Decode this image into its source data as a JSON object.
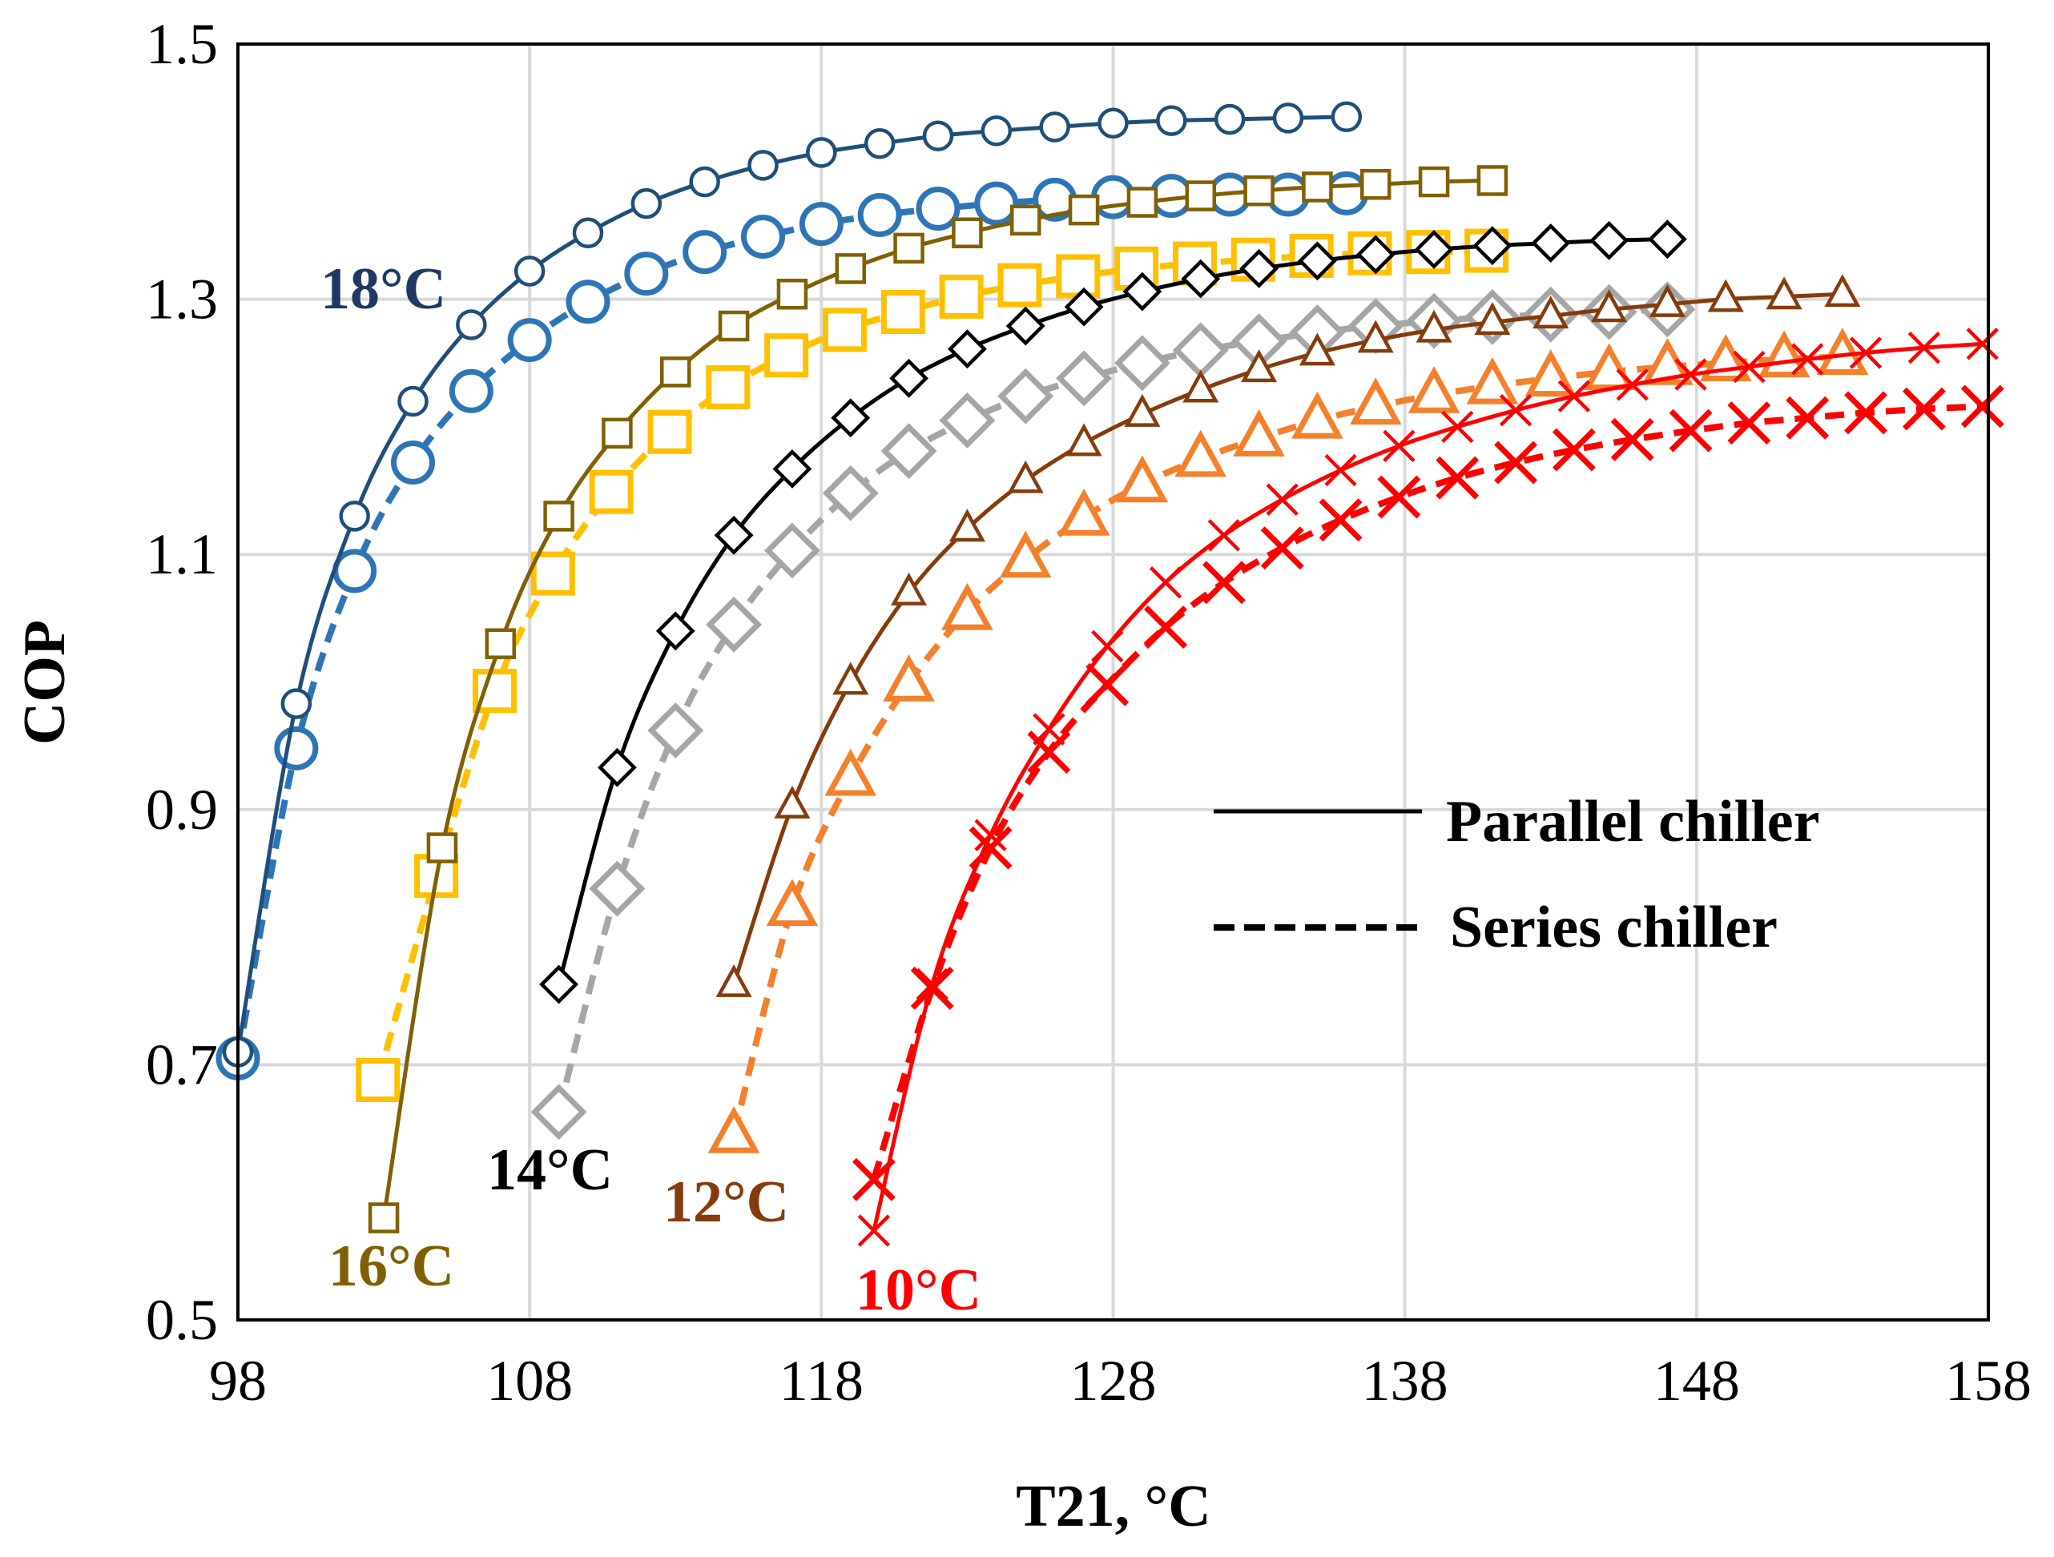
{
  "chart_data": {
    "type": "line",
    "title": "",
    "xlabel": "T21, °C",
    "ylabel": "COP",
    "xlim": [
      98,
      158
    ],
    "ylim": [
      0.5,
      1.5
    ],
    "x_ticks": [
      "98",
      "108",
      "118",
      "128",
      "138",
      "148",
      "158"
    ],
    "y_ticks": [
      "0.5",
      "0.7",
      "0.9",
      "1.1",
      "1.3",
      "1.5"
    ],
    "grid": true,
    "legend": {
      "position": "right",
      "entries": [
        {
          "label": "Parallel chiller",
          "style": "solid"
        },
        {
          "label": "Series chiller",
          "style": "dashed"
        }
      ]
    },
    "groups": [
      {
        "label": "18°C",
        "label_color": "#1f3864",
        "marker": "circle",
        "parallel": {
          "color": "#1f4e79",
          "x": [
            98,
            100,
            102,
            104,
            106,
            108,
            110,
            112,
            114,
            116,
            118,
            120,
            122,
            124,
            126,
            128,
            130,
            132,
            134,
            136
          ],
          "y": [
            0.71,
            0.983,
            1.13,
            1.22,
            1.28,
            1.322,
            1.352,
            1.375,
            1.392,
            1.405,
            1.415,
            1.422,
            1.428,
            1.432,
            1.435,
            1.438,
            1.44,
            1.441,
            1.442,
            1.443
          ]
        },
        "series": {
          "color": "#2e75b6",
          "x": [
            98,
            100,
            102,
            104,
            106,
            108,
            110,
            112,
            114,
            116,
            118,
            120,
            122,
            124,
            126,
            128,
            130,
            132,
            134,
            136
          ],
          "y": [
            0.705,
            0.948,
            1.087,
            1.172,
            1.228,
            1.268,
            1.298,
            1.32,
            1.337,
            1.349,
            1.359,
            1.366,
            1.371,
            1.375,
            1.378,
            1.38,
            1.381,
            1.382,
            1.382,
            1.383
          ]
        }
      },
      {
        "label": "16°C",
        "label_color": "#7f6000",
        "marker": "square",
        "parallel": {
          "color": "#806000",
          "x": [
            103,
            105,
            107,
            109,
            111,
            113,
            115,
            117,
            119,
            121,
            123,
            125,
            127,
            129,
            131,
            133,
            135,
            137,
            139,
            141
          ],
          "y": [
            0.58,
            0.87,
            1.03,
            1.13,
            1.195,
            1.243,
            1.279,
            1.304,
            1.324,
            1.34,
            1.352,
            1.362,
            1.37,
            1.376,
            1.381,
            1.385,
            1.388,
            1.39,
            1.392,
            1.393
          ]
        },
        "series": {
          "color": "#ffc000",
          "x": [
            102.8,
            104.8,
            106.8,
            108.8,
            110.8,
            112.8,
            114.8,
            116.8,
            118.8,
            120.8,
            122.8,
            124.8,
            126.8,
            128.8,
            130.8,
            132.8,
            134.8,
            136.8,
            138.8,
            140.8
          ],
          "y": [
            0.688,
            0.848,
            0.993,
            1.085,
            1.149,
            1.196,
            1.231,
            1.256,
            1.276,
            1.29,
            1.302,
            1.311,
            1.318,
            1.324,
            1.328,
            1.331,
            1.334,
            1.336,
            1.337,
            1.338
          ]
        }
      },
      {
        "label": "14°C",
        "label_color": "#000000",
        "marker": "diamond",
        "parallel": {
          "color": "#000000",
          "x": [
            109,
            111,
            113,
            115,
            117,
            119,
            121,
            123,
            125,
            127,
            129,
            131,
            133,
            135,
            137,
            139,
            141,
            143,
            145,
            147
          ],
          "y": [
            0.763,
            0.933,
            1.04,
            1.115,
            1.167,
            1.207,
            1.238,
            1.261,
            1.279,
            1.294,
            1.306,
            1.316,
            1.324,
            1.33,
            1.335,
            1.339,
            1.342,
            1.344,
            1.346,
            1.347
          ]
        },
        "series": {
          "color": "#a6a6a6",
          "x": [
            109,
            111,
            113,
            115,
            117,
            119,
            121,
            123,
            125,
            127,
            129,
            131,
            133,
            135,
            137,
            139,
            141,
            143,
            145,
            147
          ],
          "y": [
            0.663,
            0.838,
            0.962,
            1.045,
            1.103,
            1.148,
            1.181,
            1.205,
            1.224,
            1.238,
            1.25,
            1.26,
            1.267,
            1.274,
            1.279,
            1.283,
            1.286,
            1.288,
            1.29,
            1.292
          ]
        }
      },
      {
        "label": "12°C",
        "label_color": "#843c0c",
        "marker": "triangle",
        "parallel": {
          "color": "#843c0c",
          "x": [
            115,
            117,
            119,
            121,
            123,
            125,
            127,
            129,
            131,
            133,
            135,
            137,
            139,
            141,
            143,
            145,
            147,
            149,
            151,
            153
          ],
          "y": [
            0.763,
            0.903,
            1.0,
            1.07,
            1.12,
            1.158,
            1.187,
            1.21,
            1.229,
            1.245,
            1.258,
            1.268,
            1.276,
            1.282,
            1.287,
            1.292,
            1.296,
            1.3,
            1.302,
            1.304
          ]
        },
        "series": {
          "color": "#f4802c",
          "x": [
            115,
            117,
            119,
            121,
            123,
            125,
            127,
            129,
            131,
            133,
            135,
            137,
            139,
            141,
            143,
            145,
            147,
            149,
            151,
            153
          ],
          "y": [
            0.645,
            0.823,
            0.925,
            0.999,
            1.055,
            1.096,
            1.129,
            1.155,
            1.175,
            1.191,
            1.205,
            1.216,
            1.225,
            1.232,
            1.238,
            1.243,
            1.247,
            1.25,
            1.253,
            1.255
          ]
        }
      },
      {
        "label": "10°C",
        "label_color": "#ff0000",
        "marker": "cross",
        "parallel": {
          "color": "#ff0000",
          "x": [
            119.8,
            121.8,
            123.8,
            125.8,
            127.8,
            129.8,
            131.8,
            133.8,
            135.8,
            137.8,
            139.8,
            141.8,
            143.8,
            145.8,
            147.8,
            149.8,
            151.8,
            153.8,
            155.8,
            157.8
          ],
          "y": [
            0.57,
            0.763,
            0.88,
            0.963,
            1.028,
            1.078,
            1.115,
            1.143,
            1.166,
            1.185,
            1.2,
            1.213,
            1.224,
            1.233,
            1.241,
            1.247,
            1.253,
            1.258,
            1.262,
            1.265
          ]
        },
        "series": {
          "color": "#ff0000",
          "x": [
            119.8,
            121.8,
            123.8,
            125.8,
            127.8,
            129.8,
            131.8,
            133.8,
            135.8,
            137.8,
            139.8,
            141.8,
            143.8,
            145.8,
            147.8,
            149.8,
            151.8,
            153.8,
            155.8,
            157.8
          ],
          "y": [
            0.61,
            0.76,
            0.87,
            0.945,
            0.998,
            1.043,
            1.078,
            1.105,
            1.127,
            1.145,
            1.16,
            1.172,
            1.182,
            1.19,
            1.197,
            1.203,
            1.207,
            1.211,
            1.214,
            1.216
          ]
        }
      }
    ]
  }
}
